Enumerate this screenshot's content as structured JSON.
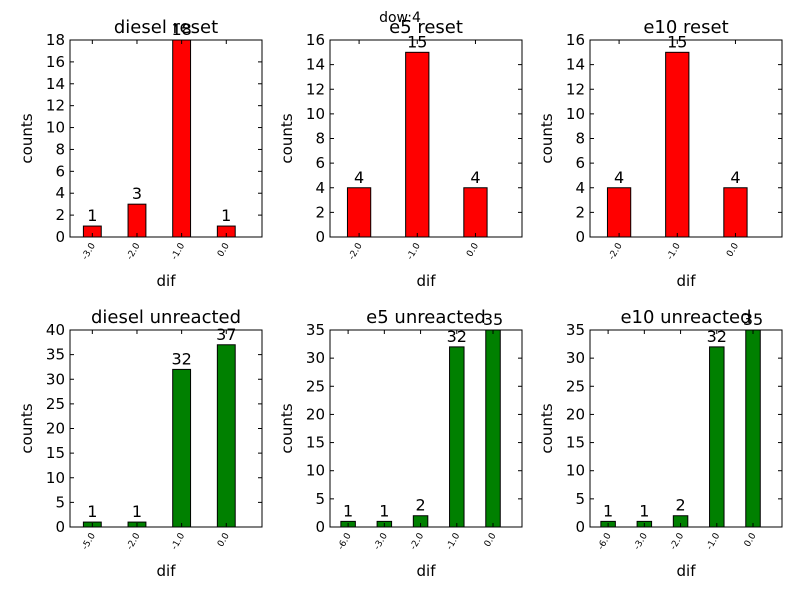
{
  "figure": {
    "suptitle": "dow:4"
  },
  "chart_data": [
    {
      "type": "bar",
      "title": "diesel reset",
      "xlabel": "dif",
      "ylabel": "counts",
      "color": "#ff0000",
      "categories": [
        "-3.0",
        "-2.0",
        "-1.0",
        "0.0"
      ],
      "values": [
        1,
        3,
        18,
        1
      ],
      "ylim": [
        0,
        18
      ],
      "yticks": [
        0,
        2,
        4,
        6,
        8,
        10,
        12,
        14,
        16,
        18
      ]
    },
    {
      "type": "bar",
      "title": "e5 reset",
      "xlabel": "dif",
      "ylabel": "counts",
      "color": "#ff0000",
      "categories": [
        "-2.0",
        "-1.0",
        "0.0"
      ],
      "values": [
        4,
        15,
        4
      ],
      "ylim": [
        0,
        16
      ],
      "yticks": [
        0,
        2,
        4,
        6,
        8,
        10,
        12,
        14,
        16
      ]
    },
    {
      "type": "bar",
      "title": "e10 reset",
      "xlabel": "dif",
      "ylabel": "counts",
      "color": "#ff0000",
      "categories": [
        "-2.0",
        "-1.0",
        "0.0"
      ],
      "values": [
        4,
        15,
        4
      ],
      "ylim": [
        0,
        16
      ],
      "yticks": [
        0,
        2,
        4,
        6,
        8,
        10,
        12,
        14,
        16
      ]
    },
    {
      "type": "bar",
      "title": "diesel unreacted",
      "xlabel": "dif",
      "ylabel": "counts",
      "color": "#008000",
      "categories": [
        "-5.0",
        "-2.0",
        "-1.0",
        "0.0"
      ],
      "values": [
        1,
        1,
        32,
        37
      ],
      "ylim": [
        0,
        40
      ],
      "yticks": [
        0,
        5,
        10,
        15,
        20,
        25,
        30,
        35,
        40
      ]
    },
    {
      "type": "bar",
      "title": "e5 unreacted",
      "xlabel": "dif",
      "ylabel": "counts",
      "color": "#008000",
      "categories": [
        "-6.0",
        "-3.0",
        "-2.0",
        "-1.0",
        "0.0"
      ],
      "values": [
        1,
        1,
        2,
        32,
        35
      ],
      "ylim": [
        0,
        35
      ],
      "yticks": [
        0,
        5,
        10,
        15,
        20,
        25,
        30,
        35
      ]
    },
    {
      "type": "bar",
      "title": "e10 unreacted",
      "xlabel": "dif",
      "ylabel": "counts",
      "color": "#008000",
      "categories": [
        "-6.0",
        "-3.0",
        "-2.0",
        "-1.0",
        "0.0"
      ],
      "values": [
        1,
        1,
        2,
        32,
        35
      ],
      "ylim": [
        0,
        35
      ],
      "yticks": [
        0,
        5,
        10,
        15,
        20,
        25,
        30,
        35
      ]
    }
  ]
}
